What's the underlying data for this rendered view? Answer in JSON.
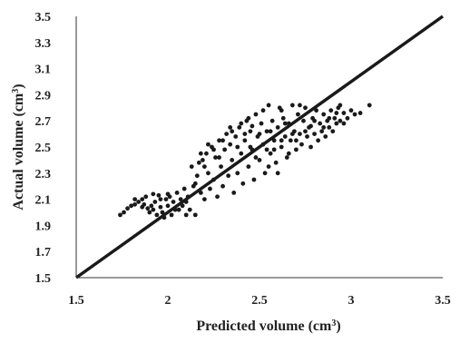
{
  "chart_data": {
    "type": "scatter",
    "title": "",
    "xlabel": "Predicted volume (cm",
    "ylabel": "Actual volume (cm",
    "label_superscript": "3",
    "label_close": ")",
    "xlim": [
      1.5,
      3.5
    ],
    "ylim": [
      1.5,
      3.5
    ],
    "x_ticks": [
      "1.5",
      "2",
      "2.5",
      "3",
      "3.5"
    ],
    "y_ticks": [
      "1.5",
      "1.7",
      "1.9",
      "2.1",
      "2.3",
      "2.5",
      "2.7",
      "2.9",
      "3.1",
      "3.3",
      "3.5"
    ],
    "grid": false,
    "legend": "none",
    "marker_color": "#1a1a1a",
    "reference_line": {
      "x": [
        1.5,
        3.5
      ],
      "y": [
        1.5,
        3.5
      ]
    },
    "series": [
      {
        "points": [
          [
            1.74,
            1.98
          ],
          [
            1.76,
            2.0
          ],
          [
            1.78,
            2.03
          ],
          [
            1.8,
            2.05
          ],
          [
            1.82,
            2.06
          ],
          [
            1.84,
            2.08
          ],
          [
            1.86,
            2.1
          ],
          [
            1.87,
            2.06
          ],
          [
            1.88,
            2.12
          ],
          [
            1.89,
            2.03
          ],
          [
            1.9,
            2.0
          ],
          [
            1.91,
            2.05
          ],
          [
            1.92,
            2.02
          ],
          [
            1.93,
            2.08
          ],
          [
            1.94,
            1.98
          ],
          [
            1.95,
            2.13
          ],
          [
            1.96,
            2.04
          ],
          [
            1.97,
            2.0
          ],
          [
            1.98,
            1.96
          ],
          [
            1.99,
            2.1
          ],
          [
            2.0,
            2.05
          ],
          [
            2.01,
            2.12
          ],
          [
            2.02,
            1.98
          ],
          [
            2.03,
            2.08
          ],
          [
            2.05,
            2.15
          ],
          [
            2.06,
            2.02
          ],
          [
            2.07,
            2.1
          ],
          [
            2.08,
            2.05
          ],
          [
            2.09,
            2.18
          ],
          [
            2.1,
            1.98
          ],
          [
            2.11,
            2.12
          ],
          [
            2.12,
            2.02
          ],
          [
            2.13,
            2.35
          ],
          [
            2.14,
            2.2
          ],
          [
            2.15,
            1.98
          ],
          [
            2.16,
            2.28
          ],
          [
            2.17,
            2.38
          ],
          [
            2.18,
            2.15
          ],
          [
            2.19,
            2.4
          ],
          [
            2.2,
            2.1
          ],
          [
            2.21,
            2.45
          ],
          [
            2.22,
            2.3
          ],
          [
            2.23,
            2.18
          ],
          [
            2.24,
            2.5
          ],
          [
            2.25,
            2.25
          ],
          [
            2.26,
            2.42
          ],
          [
            2.27,
            2.12
          ],
          [
            2.28,
            2.55
          ],
          [
            2.29,
            2.35
          ],
          [
            2.3,
            2.2
          ],
          [
            2.31,
            2.48
          ],
          [
            2.32,
            2.6
          ],
          [
            2.33,
            2.28
          ],
          [
            2.34,
            2.52
          ],
          [
            2.35,
            2.4
          ],
          [
            2.36,
            2.15
          ],
          [
            2.37,
            2.58
          ],
          [
            2.38,
            2.3
          ],
          [
            2.39,
            2.65
          ],
          [
            2.4,
            2.45
          ],
          [
            2.41,
            2.22
          ],
          [
            2.42,
            2.55
          ],
          [
            2.43,
            2.7
          ],
          [
            2.44,
            2.35
          ],
          [
            2.45,
            2.62
          ],
          [
            2.46,
            2.48
          ],
          [
            2.47,
            2.25
          ],
          [
            2.48,
            2.75
          ],
          [
            2.49,
            2.58
          ],
          [
            2.5,
            2.4
          ],
          [
            2.51,
            2.68
          ],
          [
            2.52,
            2.52
          ],
          [
            2.53,
            2.3
          ],
          [
            2.54,
            2.62
          ],
          [
            2.55,
            2.82
          ],
          [
            2.56,
            2.45
          ],
          [
            2.57,
            2.7
          ],
          [
            2.58,
            2.55
          ],
          [
            2.59,
            2.38
          ],
          [
            2.6,
            2.65
          ],
          [
            2.61,
            2.8
          ],
          [
            2.62,
            2.5
          ],
          [
            2.63,
            2.72
          ],
          [
            2.64,
            2.58
          ],
          [
            2.65,
            2.42
          ],
          [
            2.66,
            2.68
          ],
          [
            2.67,
            2.55
          ],
          [
            2.68,
            2.82
          ],
          [
            2.69,
            2.62
          ],
          [
            2.7,
            2.48
          ],
          [
            2.71,
            2.75
          ],
          [
            2.72,
            2.6
          ],
          [
            2.73,
            2.52
          ],
          [
            2.74,
            2.7
          ],
          [
            2.75,
            2.8
          ],
          [
            2.76,
            2.58
          ],
          [
            2.77,
            2.65
          ],
          [
            2.78,
            2.5
          ],
          [
            2.79,
            2.72
          ],
          [
            2.8,
            2.6
          ],
          [
            2.81,
            2.78
          ],
          [
            2.82,
            2.55
          ],
          [
            2.83,
            2.68
          ],
          [
            2.84,
            2.62
          ],
          [
            2.85,
            2.75
          ],
          [
            2.86,
            2.58
          ],
          [
            2.87,
            2.7
          ],
          [
            2.88,
            2.65
          ],
          [
            2.89,
            2.78
          ],
          [
            2.9,
            2.62
          ],
          [
            2.91,
            2.72
          ],
          [
            2.92,
            2.68
          ],
          [
            2.93,
            2.8
          ],
          [
            2.94,
            2.7
          ],
          [
            2.96,
            2.76
          ],
          [
            2.98,
            2.72
          ],
          [
            3.0,
            2.78
          ],
          [
            3.02,
            2.75
          ],
          [
            3.05,
            2.76
          ],
          [
            3.1,
            2.82
          ],
          [
            2.35,
            2.62
          ],
          [
            2.4,
            2.68
          ],
          [
            2.45,
            2.5
          ],
          [
            2.52,
            2.78
          ],
          [
            2.58,
            2.48
          ],
          [
            2.62,
            2.55
          ],
          [
            2.66,
            2.45
          ],
          [
            2.3,
            2.55
          ],
          [
            2.28,
            2.42
          ],
          [
            2.44,
            2.72
          ],
          [
            2.5,
            2.6
          ],
          [
            2.55,
            2.35
          ],
          [
            2.6,
            2.3
          ],
          [
            2.7,
            2.55
          ],
          [
            2.75,
            2.62
          ],
          [
            2.8,
            2.7
          ],
          [
            2.85,
            2.65
          ],
          [
            2.25,
            2.48
          ],
          [
            2.2,
            2.35
          ],
          [
            2.15,
            2.22
          ],
          [
            2.38,
            2.5
          ],
          [
            2.48,
            2.42
          ],
          [
            2.54,
            2.48
          ],
          [
            2.64,
            2.68
          ],
          [
            2.72,
            2.82
          ],
          [
            1.92,
            2.14
          ],
          [
            1.96,
            2.1
          ],
          [
            2.0,
            2.14
          ],
          [
            1.86,
            2.04
          ],
          [
            1.82,
            2.1
          ],
          [
            2.04,
            2.02
          ],
          [
            2.1,
            2.08
          ],
          [
            2.18,
            2.45
          ],
          [
            2.22,
            2.52
          ],
          [
            2.34,
            2.65
          ],
          [
            2.42,
            2.6
          ],
          [
            2.46,
            2.66
          ],
          [
            2.56,
            2.62
          ],
          [
            2.62,
            2.78
          ],
          [
            2.68,
            2.6
          ],
          [
            2.78,
            2.66
          ],
          [
            2.88,
            2.72
          ],
          [
            2.92,
            2.76
          ],
          [
            2.94,
            2.82
          ],
          [
            2.96,
            2.68
          ]
        ]
      }
    ]
  }
}
